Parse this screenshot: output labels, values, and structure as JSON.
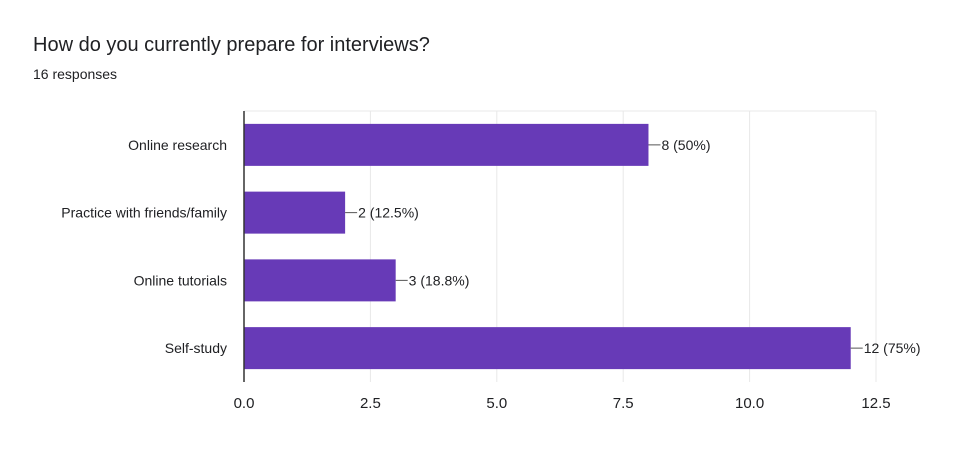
{
  "question": {
    "title": "How do you currently prepare for interviews?",
    "responses": "16 responses"
  },
  "colors": {
    "bar": "#673ab7",
    "grid": "#e8e8e8",
    "axis": "#333333",
    "text": "#202124"
  },
  "chart_data": {
    "type": "bar",
    "orientation": "horizontal",
    "categories": [
      "Online research",
      "Practice with friends/family",
      "Online tutorials",
      "Self-study"
    ],
    "values": [
      8,
      2,
      3,
      12
    ],
    "data_labels": [
      "8 (50%)",
      "2 (12.5%)",
      "3 (18.8%)",
      "12 (75%)"
    ],
    "xlim": [
      0,
      12.5
    ],
    "x_ticks": [
      "0.0",
      "2.5",
      "5.0",
      "7.5",
      "10.0",
      "12.5"
    ],
    "tick_values": [
      0,
      2.5,
      5,
      7.5,
      10,
      12.5
    ],
    "title": "How do you currently prepare for interviews?",
    "xlabel": "",
    "ylabel": "",
    "grid": true,
    "legend": "none"
  }
}
